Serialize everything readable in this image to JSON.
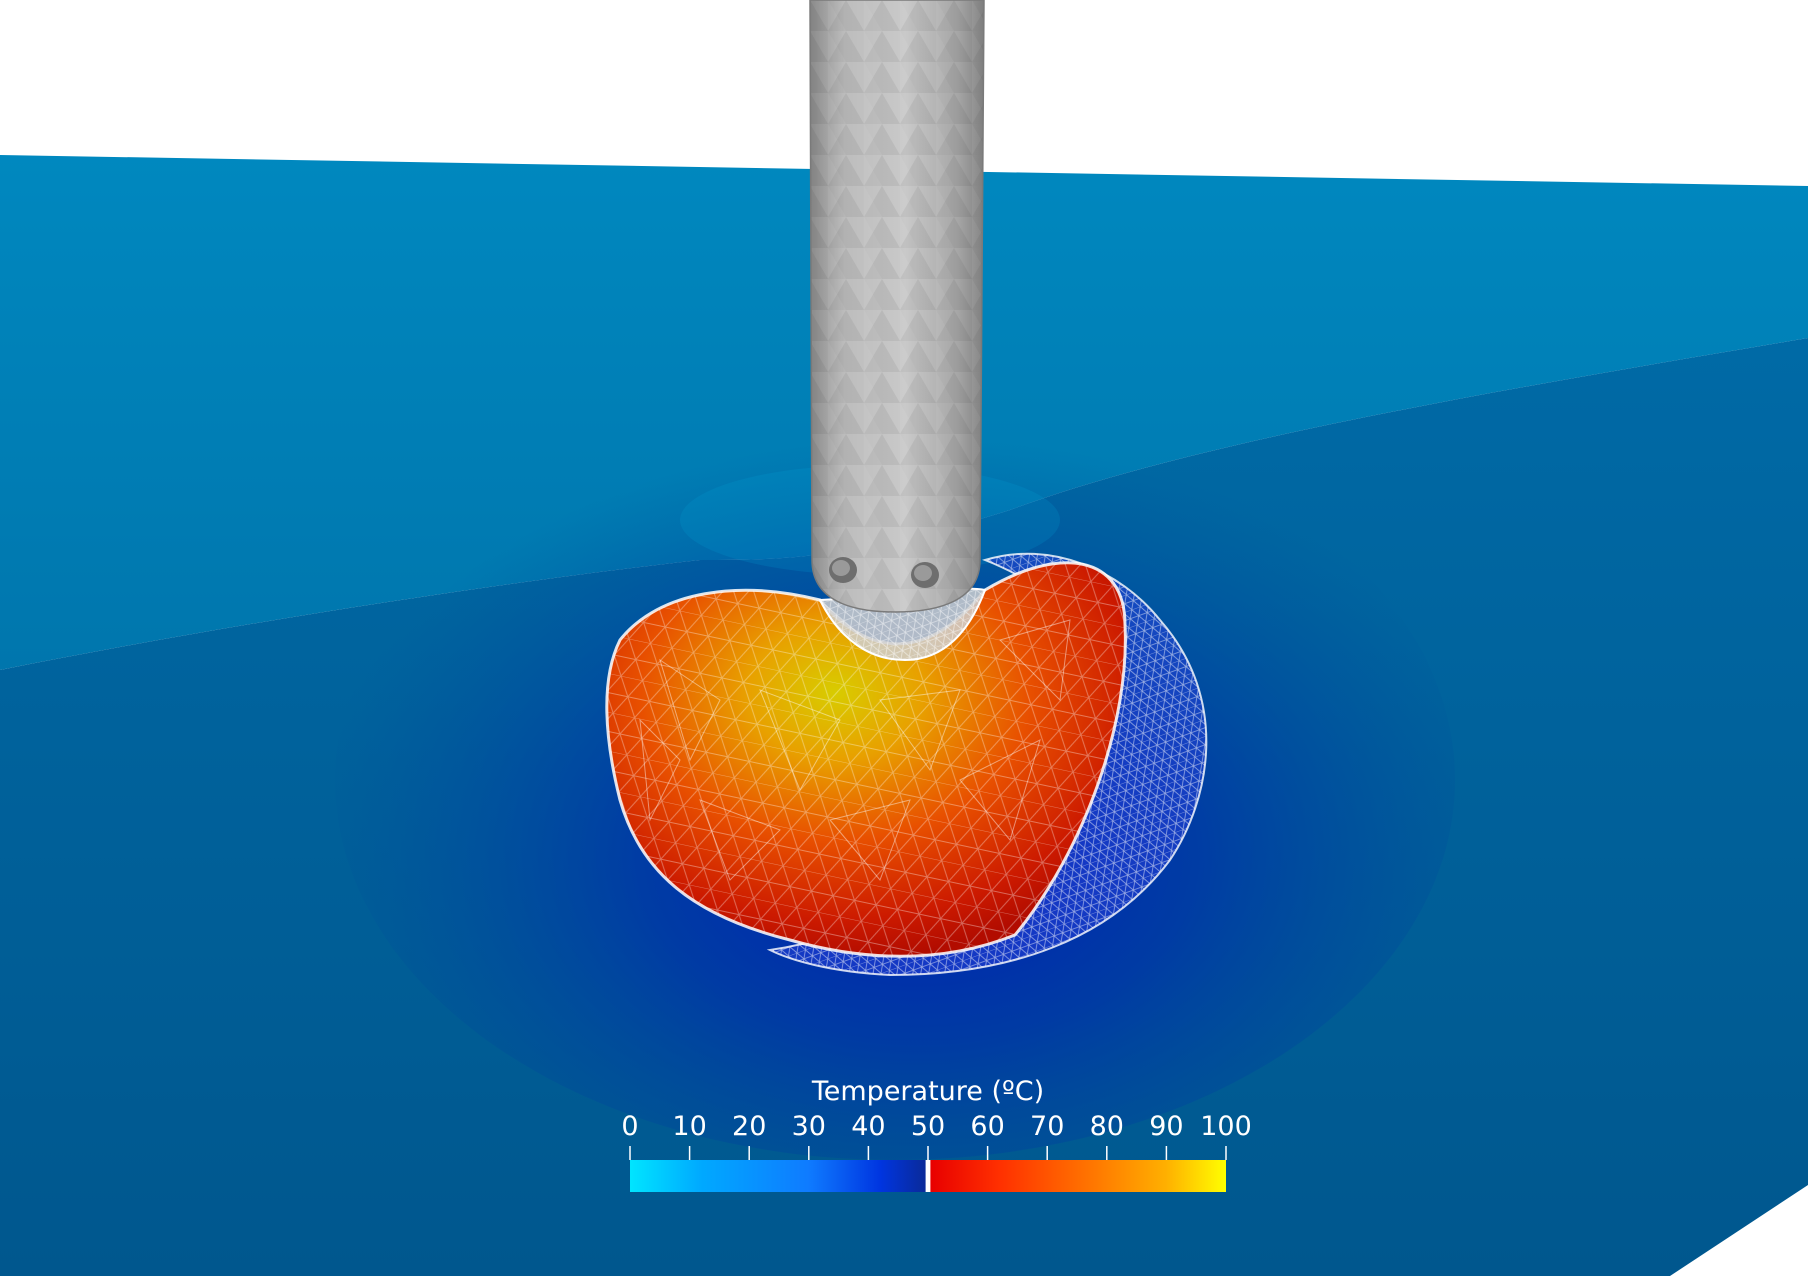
{
  "colorbar": {
    "title": "Temperature (ºC)",
    "ticks": [
      0,
      10,
      20,
      30,
      40,
      50,
      60,
      70,
      80,
      90,
      100
    ],
    "range": [
      0,
      100
    ],
    "cold_stops": [
      "#00e5ff",
      "#00a9ff",
      "#0f7bff",
      "#0035e0",
      "#0a2a9a"
    ],
    "hot_stops": [
      "#e80000",
      "#ff3000",
      "#ff7800",
      "#ffb000",
      "#ffff00"
    ],
    "threshold": 50
  },
  "colors": {
    "background": "#ffffff",
    "tissue_top": "#0082b8",
    "tissue_front": "#00619c",
    "probe": "#b4b4b4",
    "lesion_core": "#d8c800",
    "lesion_edge": "#c81000",
    "mesh": "#ffffff"
  },
  "icons": {
    "probe": "cylindrical-needle-icon",
    "lesion": "ablation-zone-mesh-icon"
  }
}
